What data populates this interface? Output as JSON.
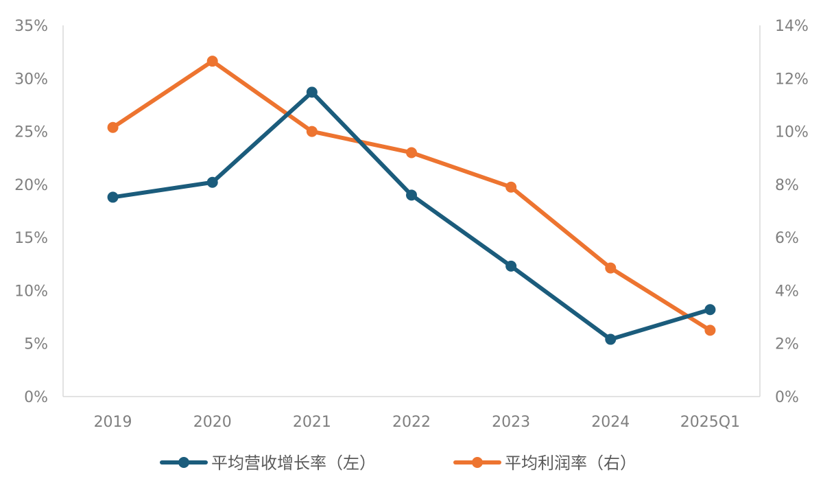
{
  "chart_data": {
    "type": "line",
    "title": "",
    "categories": [
      "2019",
      "2020",
      "2021",
      "2022",
      "2023",
      "2024",
      "2025Q1"
    ],
    "series": [
      {
        "name": "平均营收增长率（左）",
        "axis": "left",
        "color": "#1b5c7c",
        "values": [
          18.8,
          20.2,
          28.7,
          19.0,
          12.3,
          5.4,
          8.2
        ]
      },
      {
        "name": "平均利润率（右）",
        "axis": "right",
        "color": "#ed7430",
        "values": [
          10.15,
          12.65,
          10.0,
          9.2,
          7.9,
          4.85,
          2.5
        ]
      }
    ],
    "y_left": {
      "min": 0,
      "max": 35,
      "step": 5,
      "tick_labels": [
        "0%",
        "5%",
        "10%",
        "15%",
        "20%",
        "25%",
        "30%",
        "35%"
      ]
    },
    "y_right": {
      "min": 0,
      "max": 14,
      "step": 2,
      "tick_labels": [
        "0%",
        "2%",
        "4%",
        "6%",
        "8%",
        "10%",
        "12%",
        "14%"
      ]
    },
    "grid": false,
    "legend_position": "bottom"
  }
}
